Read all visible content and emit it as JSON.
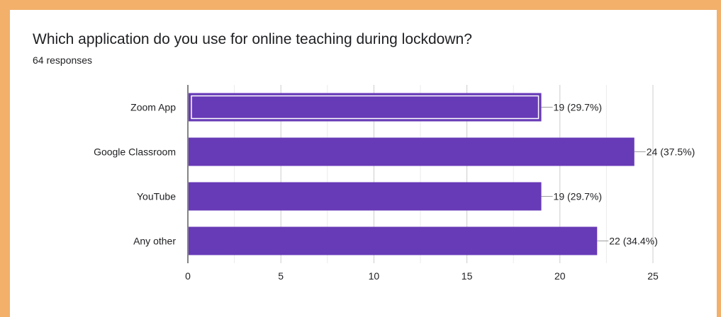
{
  "chart_data": {
    "type": "bar",
    "orientation": "horizontal",
    "title": "Which application do you use for online teaching during lockdown?",
    "subtitle": "64 responses",
    "categories": [
      "Zoom App",
      "Google Classroom",
      "YouTube",
      "Any other"
    ],
    "values": [
      19,
      24,
      19,
      22
    ],
    "value_labels": [
      "19 (29.7%)",
      "24 (37.5%)",
      "19 (29.7%)",
      "22 (34.4%)"
    ],
    "xlim": [
      0,
      25
    ],
    "xticks": [
      "0",
      "5",
      "10",
      "15",
      "20",
      "25"
    ],
    "grid": true,
    "bar_color": "#673ab7",
    "highlighted_category": "Zoom App"
  }
}
